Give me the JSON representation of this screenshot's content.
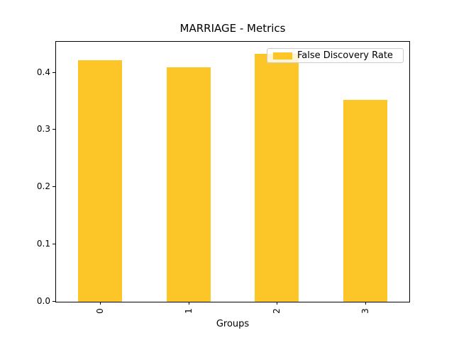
{
  "figure": {
    "background": "#ffffff"
  },
  "chart_data": {
    "type": "bar",
    "title": "MARRIAGE - Metrics",
    "categories": [
      "0",
      "1",
      "2",
      "3"
    ],
    "series": [
      {
        "name": "False Discovery Rate",
        "values": [
          0.422,
          0.41,
          0.433,
          0.353
        ]
      }
    ],
    "xlabel": "Groups",
    "ylabel": "",
    "ylim": [
      0,
      0.454
    ],
    "yticks": [
      "0.0",
      "0.1",
      "0.2",
      "0.3",
      "0.4"
    ],
    "bar_color": "#FDC628",
    "bar_relative_width": 0.5,
    "grid": false,
    "legend": {
      "label": "False Discovery Rate",
      "position": "upper right",
      "background": "rgba(255,255,255,0.8)",
      "border_color": "#cccccc"
    },
    "spine_color": "#000000"
  }
}
